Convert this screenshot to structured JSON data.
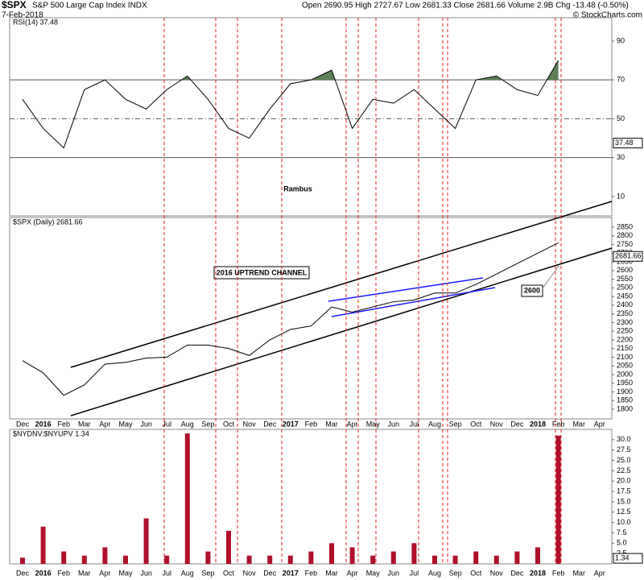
{
  "header": {
    "symbol": "$SPX",
    "name": "S&P 500 Large Cap Index INDX",
    "date": "7-Feb-2018",
    "quote": "Open 2690.95  High 2727.67  Low 2681.33  Close 2681.66  Volume 2.9B  Chg -13.48 (-0.50%)",
    "credit": "© StockCharts.com"
  },
  "chart_data": [
    {
      "type": "line",
      "title": "RSI(14) 37.48",
      "annotation": "Rambus",
      "color": "#000000",
      "fill_color": "#5d7f55",
      "values": [
        60,
        45,
        35,
        65,
        70,
        60,
        55,
        65,
        72,
        60,
        45,
        40,
        55,
        68,
        70,
        75,
        45,
        60,
        58,
        65,
        55,
        45,
        70,
        72,
        65,
        62,
        80,
        null,
        null
      ],
      "last_value": 37.48,
      "ylim": [
        0,
        102
      ],
      "yticks": [
        10,
        30,
        50,
        70,
        90
      ]
    },
    {
      "type": "line",
      "title": "$SPX (Daily) 2681.66",
      "annotations": [
        "2016 UPTREND CHANNEL",
        "2600"
      ],
      "color": "#000000",
      "categories": [
        "Dec",
        "2016",
        "Feb",
        "Mar",
        "Apr",
        "May",
        "Jun",
        "Jul",
        "Aug",
        "Sep",
        "Oct",
        "Nov",
        "Dec",
        "2017",
        "Feb",
        "Mar",
        "Apr",
        "May",
        "Jun",
        "Jul",
        "Aug",
        "Sep",
        "Oct",
        "Nov",
        "Dec",
        "2018",
        "Feb",
        "Mar",
        "Apr"
      ],
      "values": [
        2080,
        2010,
        1880,
        1940,
        2060,
        2070,
        2095,
        2100,
        2170,
        2170,
        2150,
        2110,
        2200,
        2260,
        2280,
        2390,
        2360,
        2390,
        2420,
        2430,
        2470,
        2470,
        2520,
        2580,
        2640,
        2700,
        2760,
        null,
        null
      ],
      "last_value": 2681.66,
      "ylim": [
        1744,
        2906
      ],
      "yticks": [
        1800,
        1850,
        1900,
        1950,
        2000,
        2050,
        2100,
        2150,
        2200,
        2250,
        2300,
        2350,
        2400,
        2450,
        2500,
        2550,
        2600,
        2650,
        2700,
        2750,
        2800,
        2850
      ]
    },
    {
      "type": "bar",
      "title": "$NYDNV:$NYUPV 1.34",
      "color": "#b0102a",
      "categories": [
        "Dec",
        "2016",
        "Feb",
        "Mar",
        "Apr",
        "May",
        "Jun",
        "Jul",
        "Aug",
        "Sep",
        "Oct",
        "Nov",
        "Dec",
        "2017",
        "Feb",
        "Mar",
        "Apr",
        "May",
        "Jun",
        "Jul",
        "Aug",
        "Sep",
        "Oct",
        "Nov",
        "Dec",
        "2018",
        "Feb",
        "Mar",
        "Apr"
      ],
      "values": [
        1.5,
        9,
        3,
        2,
        4,
        2,
        11,
        2,
        31.5,
        3,
        8,
        2,
        2,
        2,
        3,
        5,
        4,
        2,
        3,
        5,
        2,
        2,
        3,
        2,
        3,
        4,
        31,
        null,
        null
      ],
      "last_value": 1.34,
      "ylim": [
        0,
        32.5
      ],
      "yticks": [
        2.5,
        {
          "value": 5,
          "label": "5.0"
        },
        7.5,
        {
          "value": 10,
          "label": "10.0"
        },
        12.5,
        {
          "value": 15,
          "label": "15.0"
        },
        17.5,
        {
          "value": 20,
          "label": "20.0"
        },
        22.5,
        {
          "value": 25,
          "label": "25.0"
        },
        27.5,
        {
          "value": 30,
          "label": "30.0"
        }
      ]
    }
  ]
}
